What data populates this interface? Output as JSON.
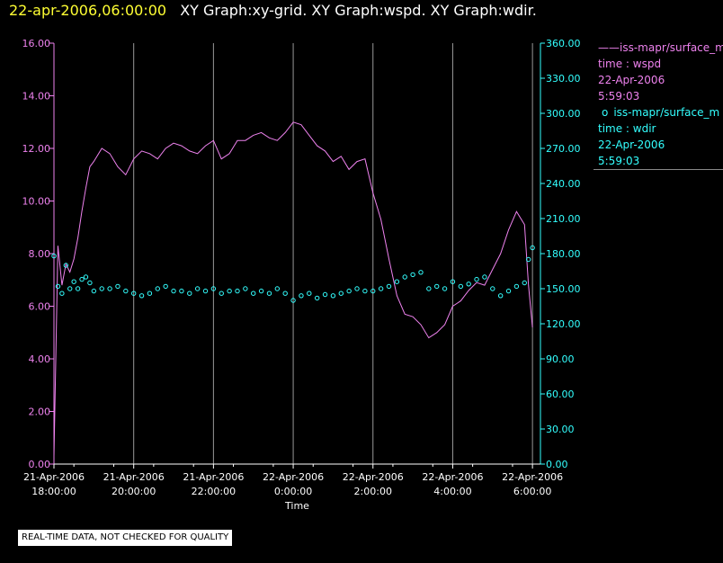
{
  "header": {
    "timestamp": "22-apr-2006,06:00:00",
    "title": "XY Graph:xy-grid.  XY Graph:wspd.  XY Graph:wdir."
  },
  "legend": {
    "entries": [
      {
        "marker": "——",
        "name": "iss-mapr/surface_m",
        "line2": "time : wspd",
        "date": "22-Apr-2006",
        "time": "5:59:03",
        "color": "#ee82ee"
      },
      {
        "marker": "o",
        "name": "iss-mapr/surface_m",
        "line2": "time : wdir",
        "date": "22-Apr-2006",
        "time": "5:59:03",
        "color": "#33ffff"
      }
    ]
  },
  "disclaimer": "REAL-TIME DATA, NOT CHECKED FOR QUALITY",
  "chart_data": {
    "type": "line",
    "xlabel": "Time",
    "x_unit": "hours since 21-Apr-2006 18:00",
    "xlim": [
      0,
      12.2
    ],
    "x_ticks": [
      {
        "x": 0,
        "date": "21-Apr-2006",
        "time": "18:00:00"
      },
      {
        "x": 2,
        "date": "21-Apr-2006",
        "time": "20:00:00"
      },
      {
        "x": 4,
        "date": "21-Apr-2006",
        "time": "22:00:00"
      },
      {
        "x": 6,
        "date": "22-Apr-2006",
        "time": "0:00:00"
      },
      {
        "x": 8,
        "date": "22-Apr-2006",
        "time": "2:00:00"
      },
      {
        "x": 10,
        "date": "22-Apr-2006",
        "time": "4:00:00"
      },
      {
        "x": 12,
        "date": "22-Apr-2006",
        "time": "6:00:00"
      }
    ],
    "left_axis": {
      "series": "wspd",
      "ylim": [
        0,
        16
      ],
      "color": "#ee82ee",
      "ticks": [
        "0.00",
        "2.00",
        "4.00",
        "6.00",
        "8.00",
        "10.00",
        "12.00",
        "14.00",
        "16.00"
      ]
    },
    "right_axis": {
      "series": "wdir",
      "ylim": [
        0,
        360
      ],
      "color": "#33ffff",
      "ticks": [
        "0.00",
        "30.00",
        "60.00",
        "90.00",
        "120.00",
        "150.00",
        "180.00",
        "210.00",
        "240.00",
        "270.00",
        "300.00",
        "330.00",
        "360.00"
      ]
    },
    "grid": "vertical",
    "series": [
      {
        "name": "time : wspd",
        "axis": "left",
        "style": "line",
        "color": "#ee82ee",
        "x": [
          0,
          0.1,
          0.2,
          0.3,
          0.4,
          0.5,
          0.6,
          0.7,
          0.8,
          0.9,
          1.0,
          1.2,
          1.4,
          1.6,
          1.8,
          2.0,
          2.2,
          2.4,
          2.6,
          2.8,
          3.0,
          3.2,
          3.4,
          3.6,
          3.8,
          4.0,
          4.2,
          4.4,
          4.6,
          4.8,
          5.0,
          5.2,
          5.4,
          5.6,
          5.8,
          6.0,
          6.2,
          6.4,
          6.6,
          6.8,
          7.0,
          7.2,
          7.4,
          7.6,
          7.8,
          8.0,
          8.2,
          8.4,
          8.6,
          8.8,
          9.0,
          9.2,
          9.4,
          9.6,
          9.8,
          10.0,
          10.2,
          10.4,
          10.6,
          10.8,
          11.0,
          11.2,
          11.4,
          11.6,
          11.8,
          11.9,
          12.0
        ],
        "y": [
          0.3,
          8.3,
          6.8,
          7.6,
          7.3,
          7.8,
          8.6,
          9.6,
          10.5,
          11.3,
          11.5,
          12.0,
          11.8,
          11.3,
          11.0,
          11.6,
          11.9,
          11.8,
          11.6,
          12.0,
          12.2,
          12.1,
          11.9,
          11.8,
          12.1,
          12.3,
          11.6,
          11.8,
          12.3,
          12.3,
          12.5,
          12.6,
          12.4,
          12.3,
          12.6,
          13.0,
          12.9,
          12.5,
          12.1,
          11.9,
          11.5,
          11.7,
          11.2,
          11.5,
          11.6,
          10.3,
          9.3,
          7.8,
          6.4,
          5.7,
          5.6,
          5.3,
          4.8,
          5.0,
          5.3,
          6.0,
          6.2,
          6.6,
          6.9,
          6.8,
          7.4,
          8.0,
          8.9,
          9.6,
          9.1,
          6.8,
          5.2
        ]
      },
      {
        "name": "time : wdir",
        "axis": "right",
        "style": "markers",
        "color": "#33ffff",
        "x": [
          0,
          0.1,
          0.2,
          0.3,
          0.4,
          0.5,
          0.6,
          0.7,
          0.8,
          0.9,
          1.0,
          1.2,
          1.4,
          1.6,
          1.8,
          2.0,
          2.2,
          2.4,
          2.6,
          2.8,
          3.0,
          3.2,
          3.4,
          3.6,
          3.8,
          4.0,
          4.2,
          4.4,
          4.6,
          4.8,
          5.0,
          5.2,
          5.4,
          5.6,
          5.8,
          6.0,
          6.2,
          6.4,
          6.6,
          6.8,
          7.0,
          7.2,
          7.4,
          7.6,
          7.8,
          8.0,
          8.2,
          8.4,
          8.6,
          8.8,
          9.0,
          9.2,
          9.4,
          9.6,
          9.8,
          10.0,
          10.2,
          10.4,
          10.6,
          10.8,
          11.0,
          11.2,
          11.4,
          11.6,
          11.8,
          11.9,
          12.0
        ],
        "y": [
          178,
          152,
          146,
          170,
          150,
          156,
          150,
          158,
          160,
          155,
          148,
          150,
          150,
          152,
          148,
          146,
          144,
          146,
          150,
          152,
          148,
          148,
          146,
          150,
          148,
          150,
          146,
          148,
          148,
          150,
          146,
          148,
          146,
          150,
          146,
          140,
          144,
          146,
          142,
          145,
          144,
          146,
          148,
          150,
          148,
          148,
          150,
          152,
          156,
          160,
          162,
          164,
          150,
          152,
          150,
          156,
          152,
          154,
          158,
          160,
          150,
          144,
          148,
          152,
          155,
          175,
          185
        ]
      }
    ]
  }
}
